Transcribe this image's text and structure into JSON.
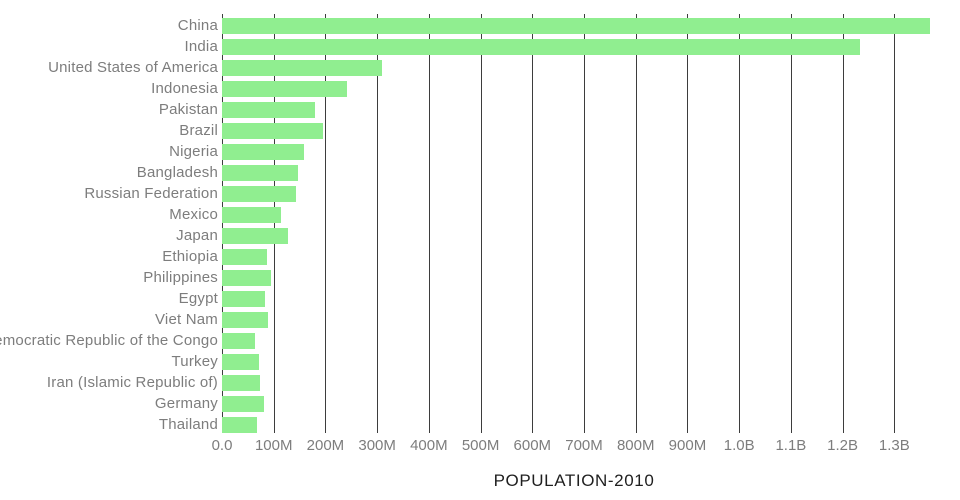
{
  "chart_data": {
    "type": "bar",
    "orientation": "horizontal",
    "title": "POPULATION-2010",
    "xlabel": "POPULATION-2010",
    "ylabel": "",
    "legend": false,
    "grid": true,
    "unit": "people",
    "value_unit_in_json": "millions",
    "xlim_millions": [
      0,
      1427
    ],
    "categories": [
      "China",
      "India",
      "United States of America",
      "Indonesia",
      "Pakistan",
      "Brazil",
      "Nigeria",
      "Bangladesh",
      "Russian Federation",
      "Mexico",
      "Japan",
      "Ethiopia",
      "Philippines",
      "Egypt",
      "Viet Nam",
      "Democratic Republic of the Congo",
      "Turkey",
      "Iran (Islamic Republic of)",
      "Germany",
      "Thailand"
    ],
    "values_millions": [
      1368.8,
      1234.3,
      309.0,
      241.8,
      179.4,
      195.7,
      158.5,
      147.6,
      143.2,
      114.1,
      128.5,
      87.6,
      94.0,
      82.8,
      88.0,
      64.6,
      72.3,
      73.8,
      81.8,
      67.2
    ],
    "x_ticks": [
      {
        "label": "0.0",
        "value_millions": 0
      },
      {
        "label": "100M",
        "value_millions": 100
      },
      {
        "label": "200M",
        "value_millions": 200
      },
      {
        "label": "300M",
        "value_millions": 300
      },
      {
        "label": "400M",
        "value_millions": 400
      },
      {
        "label": "500M",
        "value_millions": 500
      },
      {
        "label": "600M",
        "value_millions": 600
      },
      {
        "label": "700M",
        "value_millions": 700
      },
      {
        "label": "800M",
        "value_millions": 800
      },
      {
        "label": "900M",
        "value_millions": 900
      },
      {
        "label": "1.0B",
        "value_millions": 1000
      },
      {
        "label": "1.1B",
        "value_millions": 1100
      },
      {
        "label": "1.2B",
        "value_millions": 1200
      },
      {
        "label": "1.3B",
        "value_millions": 1300
      }
    ],
    "colors": {
      "bar": "#90EE90",
      "gridline": "#3d3d3d",
      "tick_label": "#7d7d7d",
      "category_label": "#7d7d7d",
      "title": "#1f1f1f",
      "background": "#ffffff"
    }
  }
}
